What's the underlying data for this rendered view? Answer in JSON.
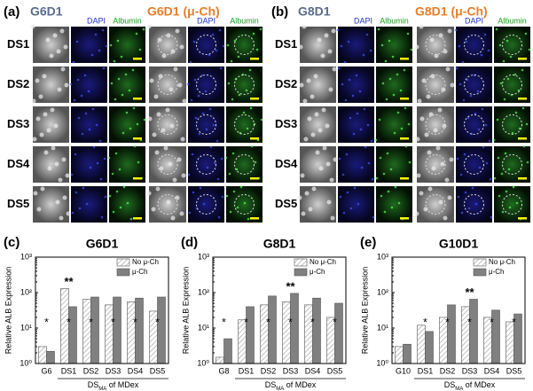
{
  "panels": [
    {
      "label": "(a)",
      "title": "G6D1",
      "title_uch": "G6D1 (μ-Ch)",
      "channels": [
        "DAPI",
        "Albumin"
      ],
      "rows": [
        "DS1",
        "DS2",
        "DS3",
        "DS4",
        "DS5"
      ]
    },
    {
      "label": "(b)",
      "title": "G8D1",
      "title_uch": "G8D1 (μ-Ch)",
      "channels": [
        "DAPI",
        "Albumin"
      ],
      "rows": [
        "DS1",
        "DS2",
        "DS3",
        "DS4",
        "DS5"
      ]
    }
  ],
  "chart_data": [
    {
      "type": "bar",
      "panel_label": "(c)",
      "title": "G6D1",
      "ylabel": "Relative ALB Expression",
      "xlabel": {
        "main": "DS",
        "sub": "MA",
        "rest": " of MDex"
      },
      "categories": [
        "G6",
        "DS1",
        "DS2",
        "DS3",
        "DS4",
        "DS5"
      ],
      "series": [
        {
          "name": "No μ-Ch",
          "color": "#ffffff",
          "pattern": "hatch",
          "values": [
            3,
            130,
            65,
            45,
            55,
            30
          ]
        },
        {
          "name": "μ-Ch",
          "color": "#808080",
          "values": [
            2.2,
            40,
            75,
            75,
            70,
            75
          ]
        }
      ],
      "log_scale": true,
      "ylim": [
        1,
        1000
      ],
      "yticks": [
        {
          "value": 1,
          "label": "10⁰"
        },
        {
          "value": 10,
          "label": "10¹"
        },
        {
          "value": 100,
          "label": "10²"
        },
        {
          "value": 1000,
          "label": "10³"
        }
      ],
      "legend": "upper right",
      "annotations": [
        {
          "text": "**",
          "category": 1
        }
      ],
      "stars": [
        "*",
        "*",
        "*",
        "*",
        "*",
        "*"
      ]
    },
    {
      "type": "bar",
      "panel_label": "(d)",
      "title": "G8D1",
      "ylabel": "Relative ALB Expression",
      "xlabel": {
        "main": "DS",
        "sub": "MA",
        "rest": " of MDex"
      },
      "categories": [
        "G8",
        "DS1",
        "DS2",
        "DS3",
        "DS4",
        "DS5"
      ],
      "series": [
        {
          "name": "No μ-Ch",
          "color": "#ffffff",
          "pattern": "hatch",
          "values": [
            1.5,
            17,
            45,
            55,
            45,
            20
          ]
        },
        {
          "name": "μ-Ch",
          "color": "#808080",
          "values": [
            5,
            40,
            80,
            95,
            70,
            50
          ]
        }
      ],
      "log_scale": true,
      "ylim": [
        1,
        1000
      ],
      "yticks": [
        {
          "value": 1,
          "label": "10⁰"
        },
        {
          "value": 10,
          "label": "10¹"
        },
        {
          "value": 100,
          "label": "10²"
        },
        {
          "value": 1000,
          "label": "10³"
        }
      ],
      "legend": "upper right",
      "annotations": [
        {
          "text": "**",
          "category": 3
        }
      ],
      "stars": [
        "*",
        "*",
        "*",
        "*",
        "*",
        "*"
      ]
    },
    {
      "type": "bar",
      "panel_label": "(e)",
      "title": "G10D1",
      "ylabel": "Relative ALB Expression",
      "xlabel": {
        "main": "DS",
        "sub": "MA",
        "rest": " of MDex"
      },
      "categories": [
        "G10",
        "DS1",
        "DS2",
        "DS3",
        "DS4",
        "DS5"
      ],
      "series": [
        {
          "name": "No μ-Ch",
          "color": "#ffffff",
          "pattern": "hatch",
          "values": [
            3,
            12,
            20,
            40,
            20,
            15
          ]
        },
        {
          "name": "μ-Ch",
          "color": "#808080",
          "values": [
            3.5,
            8,
            45,
            65,
            32,
            25
          ]
        }
      ],
      "log_scale": true,
      "ylim": [
        1,
        1000
      ],
      "yticks": [
        {
          "value": 1,
          "label": "10⁰"
        },
        {
          "value": 10,
          "label": "10¹"
        },
        {
          "value": 100,
          "label": "10²"
        },
        {
          "value": 1000,
          "label": "10³"
        }
      ],
      "legend": "upper right",
      "annotations": [
        {
          "text": "**",
          "category": 3
        }
      ],
      "stars": [
        null,
        "*",
        "*",
        "*",
        "*",
        "*"
      ]
    }
  ]
}
